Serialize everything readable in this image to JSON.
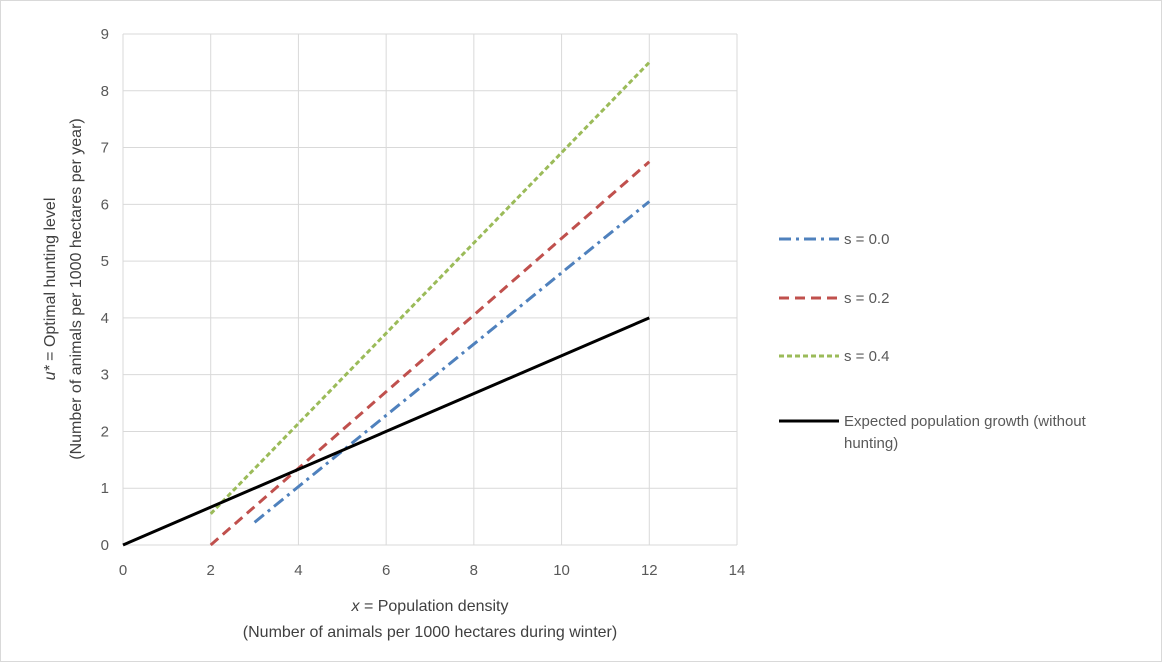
{
  "chart_data": {
    "type": "line",
    "xlabel_var": "x",
    "xlabel_line1_rest": " = Population density",
    "xlabel_line2": "(Number of animals per 1000 hectares during winter)",
    "ylabel_var": "u*",
    "ylabel_line1_rest": " = Optimal hunting level",
    "ylabel_line2": "(Number of animals per 1000 hectares per year)",
    "xlim": [
      0,
      14
    ],
    "ylim": [
      0,
      9
    ],
    "xticks": [
      "0",
      "2",
      "4",
      "6",
      "8",
      "10",
      "12",
      "14"
    ],
    "yticks": [
      "0",
      "1",
      "2",
      "3",
      "4",
      "5",
      "6",
      "7",
      "8",
      "9"
    ],
    "grid": true,
    "legend_position": "right",
    "series": [
      {
        "name": "s = 0.0",
        "color": "#4f81bd",
        "dash": "dash-dot",
        "x": [
          3,
          12
        ],
        "y": [
          0.4,
          6.05
        ]
      },
      {
        "name": "s = 0.2",
        "color": "#c0504d",
        "dash": "dash",
        "x": [
          2,
          12
        ],
        "y": [
          0.0,
          6.75
        ]
      },
      {
        "name": "s = 0.4",
        "color": "#9bbb59",
        "dash": "short-dash",
        "x": [
          2,
          12
        ],
        "y": [
          0.55,
          8.5
        ]
      },
      {
        "name": "Expected population growth (without hunting)",
        "color": "#000000",
        "dash": "solid",
        "x": [
          0,
          12
        ],
        "y": [
          0,
          4
        ]
      }
    ]
  }
}
